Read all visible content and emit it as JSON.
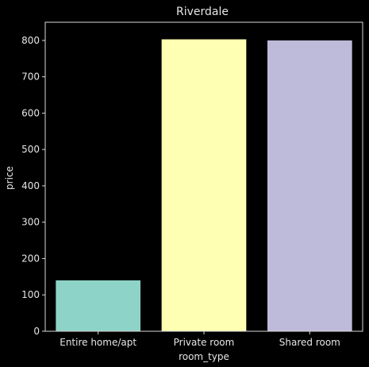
{
  "chart_data": {
    "type": "bar",
    "title": "Riverdale",
    "xlabel": "room_type",
    "ylabel": "price",
    "categories": [
      "Entire home/apt",
      "Private room",
      "Shared room"
    ],
    "values": [
      140,
      803,
      800
    ],
    "colors": [
      "#8dd3c7",
      "#ffffb3",
      "#bebada"
    ],
    "ylim": [
      0,
      850
    ],
    "yticks": [
      0,
      100,
      200,
      300,
      400,
      500,
      600,
      700,
      800
    ],
    "grid": false,
    "legend": "none",
    "style": {
      "background": "#000000",
      "axis_color": "#d9d9d9",
      "text_color": "#e6e6e6"
    }
  }
}
